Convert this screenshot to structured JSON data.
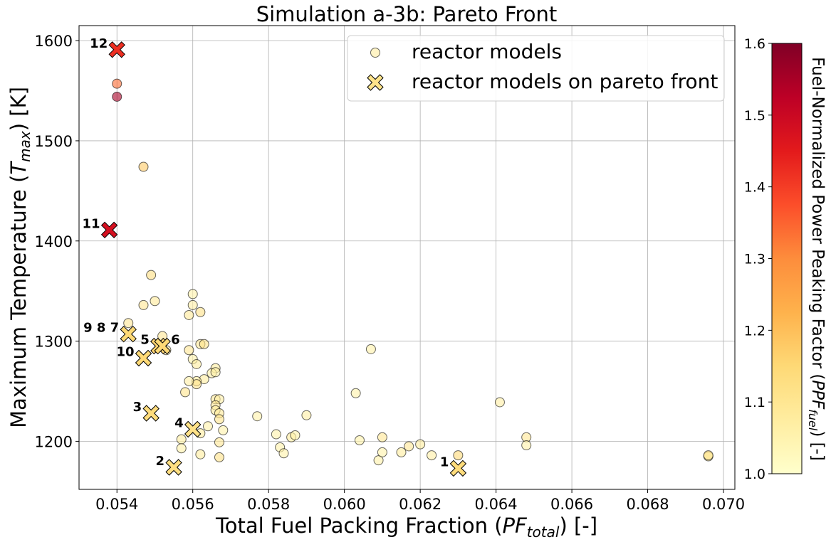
{
  "chart_data": {
    "type": "scatter",
    "title": "Simulation a-3b: Pareto Front",
    "xlabel": {
      "prefix": "Total Fuel Packing Fraction (",
      "symbol": "PF",
      "sub": "total",
      "suffix": ") [-]"
    },
    "ylabel": {
      "prefix": "Maximum Temperature (",
      "symbol": "T",
      "sub": "max",
      "suffix": ") [K]"
    },
    "colorbar_label": {
      "prefix": "Fuel-Normalized Power Peaking Factor (",
      "symbol": "PPF",
      "sub": "fuel",
      "suffix": ") [-]"
    },
    "xlim": [
      0.053,
      0.0703
    ],
    "ylim": [
      1152,
      1615
    ],
    "clim": [
      1.0,
      1.6
    ],
    "x_ticks": [
      "0.054",
      "0.056",
      "0.058",
      "0.060",
      "0.062",
      "0.064",
      "0.066",
      "0.068",
      "0.070"
    ],
    "x_tick_values": [
      0.054,
      0.056,
      0.058,
      0.06,
      0.062,
      0.064,
      0.066,
      0.068,
      0.07
    ],
    "y_ticks": [
      "1200",
      "1300",
      "1400",
      "1500",
      "1600"
    ],
    "y_tick_values": [
      1200,
      1300,
      1400,
      1500,
      1600
    ],
    "colorbar_ticks": [
      "1.0",
      "1.1",
      "1.2",
      "1.3",
      "1.4",
      "1.5",
      "1.6"
    ],
    "colorbar_tick_values": [
      1.0,
      1.1,
      1.2,
      1.3,
      1.4,
      1.5,
      1.6
    ],
    "colormap": "YlOrRd",
    "grid": true,
    "legend_position": "top-right",
    "series": [
      {
        "name": "reactor models",
        "marker": "circle",
        "points": [
          {
            "x": 0.054,
            "y": 1557,
            "c": 1.34
          },
          {
            "x": 0.054,
            "y": 1544,
            "c": 1.55
          },
          {
            "x": 0.0547,
            "y": 1474,
            "c": 1.18
          },
          {
            "x": 0.0549,
            "y": 1366,
            "c": 1.13
          },
          {
            "x": 0.055,
            "y": 1340,
            "c": 1.09
          },
          {
            "x": 0.0547,
            "y": 1336,
            "c": 1.1
          },
          {
            "x": 0.0543,
            "y": 1318,
            "c": 1.1
          },
          {
            "x": 0.0552,
            "y": 1305,
            "c": 1.1
          },
          {
            "x": 0.0553,
            "y": 1291,
            "c": 1.07
          },
          {
            "x": 0.056,
            "y": 1347,
            "c": 1.06
          },
          {
            "x": 0.056,
            "y": 1336,
            "c": 1.07
          },
          {
            "x": 0.0559,
            "y": 1326,
            "c": 1.09
          },
          {
            "x": 0.0562,
            "y": 1329,
            "c": 1.12
          },
          {
            "x": 0.0562,
            "y": 1297,
            "c": 1.09
          },
          {
            "x": 0.0563,
            "y": 1297,
            "c": 1.12
          },
          {
            "x": 0.0559,
            "y": 1291,
            "c": 1.1
          },
          {
            "x": 0.056,
            "y": 1282,
            "c": 1.06
          },
          {
            "x": 0.0561,
            "y": 1277,
            "c": 1.08
          },
          {
            "x": 0.0566,
            "y": 1273,
            "c": 1.08
          },
          {
            "x": 0.0565,
            "y": 1268,
            "c": 1.07
          },
          {
            "x": 0.0566,
            "y": 1269,
            "c": 1.06
          },
          {
            "x": 0.0563,
            "y": 1262,
            "c": 1.08
          },
          {
            "x": 0.0561,
            "y": 1260,
            "c": 1.09
          },
          {
            "x": 0.0561,
            "y": 1257,
            "c": 1.11
          },
          {
            "x": 0.0559,
            "y": 1260,
            "c": 1.07
          },
          {
            "x": 0.0558,
            "y": 1249,
            "c": 1.11
          },
          {
            "x": 0.0566,
            "y": 1242,
            "c": 1.09
          },
          {
            "x": 0.0567,
            "y": 1242,
            "c": 1.07
          },
          {
            "x": 0.0566,
            "y": 1236,
            "c": 1.1
          },
          {
            "x": 0.0566,
            "y": 1231,
            "c": 1.08
          },
          {
            "x": 0.0567,
            "y": 1228,
            "c": 1.09
          },
          {
            "x": 0.0567,
            "y": 1222,
            "c": 1.11
          },
          {
            "x": 0.0568,
            "y": 1211,
            "c": 1.06
          },
          {
            "x": 0.0564,
            "y": 1215,
            "c": 1.06
          },
          {
            "x": 0.0562,
            "y": 1208,
            "c": 1.08
          },
          {
            "x": 0.0557,
            "y": 1202,
            "c": 1.08
          },
          {
            "x": 0.0557,
            "y": 1193,
            "c": 1.06
          },
          {
            "x": 0.0562,
            "y": 1187,
            "c": 1.08
          },
          {
            "x": 0.0567,
            "y": 1199,
            "c": 1.1
          },
          {
            "x": 0.0567,
            "y": 1184,
            "c": 1.12
          },
          {
            "x": 0.0577,
            "y": 1225,
            "c": 1.06
          },
          {
            "x": 0.0582,
            "y": 1207,
            "c": 1.06
          },
          {
            "x": 0.0583,
            "y": 1194,
            "c": 1.06
          },
          {
            "x": 0.0584,
            "y": 1188,
            "c": 1.06
          },
          {
            "x": 0.0586,
            "y": 1204,
            "c": 1.08
          },
          {
            "x": 0.0587,
            "y": 1206,
            "c": 1.06
          },
          {
            "x": 0.059,
            "y": 1226,
            "c": 1.07
          },
          {
            "x": 0.0603,
            "y": 1248,
            "c": 1.06
          },
          {
            "x": 0.0604,
            "y": 1201,
            "c": 1.06
          },
          {
            "x": 0.0607,
            "y": 1292,
            "c": 1.06
          },
          {
            "x": 0.061,
            "y": 1204,
            "c": 1.1
          },
          {
            "x": 0.0609,
            "y": 1181,
            "c": 1.06
          },
          {
            "x": 0.061,
            "y": 1189,
            "c": 1.06
          },
          {
            "x": 0.0615,
            "y": 1189,
            "c": 1.08
          },
          {
            "x": 0.0617,
            "y": 1195,
            "c": 1.1
          },
          {
            "x": 0.062,
            "y": 1197,
            "c": 1.08
          },
          {
            "x": 0.0623,
            "y": 1186,
            "c": 1.07
          },
          {
            "x": 0.063,
            "y": 1186,
            "c": 1.15
          },
          {
            "x": 0.0641,
            "y": 1239,
            "c": 1.07
          },
          {
            "x": 0.0648,
            "y": 1204,
            "c": 1.1
          },
          {
            "x": 0.0648,
            "y": 1196,
            "c": 1.06
          },
          {
            "x": 0.0696,
            "y": 1185,
            "c": 1.08
          },
          {
            "x": 0.0696,
            "y": 1186,
            "c": 1.12
          }
        ]
      },
      {
        "name": "reactor models on pareto front",
        "marker": "x",
        "points": [
          {
            "x": 0.063,
            "y": 1173,
            "c": 1.14,
            "label": "1",
            "label_side": "left"
          },
          {
            "x": 0.0555,
            "y": 1174,
            "c": 1.13,
            "label": "2",
            "label_side": "left"
          },
          {
            "x": 0.0549,
            "y": 1228,
            "c": 1.14,
            "label": "3",
            "label_side": "left"
          },
          {
            "x": 0.056,
            "y": 1212,
            "c": 1.12,
            "label": "4",
            "label_side": "left"
          },
          {
            "x": 0.0551,
            "y": 1295,
            "c": 1.16,
            "label": "5",
            "label_side": "left"
          },
          {
            "x": 0.0552,
            "y": 1295,
            "c": 1.15,
            "label": "6",
            "label_side": "right"
          },
          {
            "x": 0.0543,
            "y": 1307,
            "c": 1.15,
            "label": "9 8 7",
            "label_side": "left"
          },
          {
            "x": 0.0547,
            "y": 1283,
            "c": 1.15,
            "label": "10",
            "label_side": "left"
          },
          {
            "x": 0.0538,
            "y": 1411,
            "c": 1.48,
            "label": "11",
            "label_side": "left"
          },
          {
            "x": 0.054,
            "y": 1591,
            "c": 1.42,
            "label": "12",
            "label_side": "left"
          }
        ]
      }
    ]
  }
}
